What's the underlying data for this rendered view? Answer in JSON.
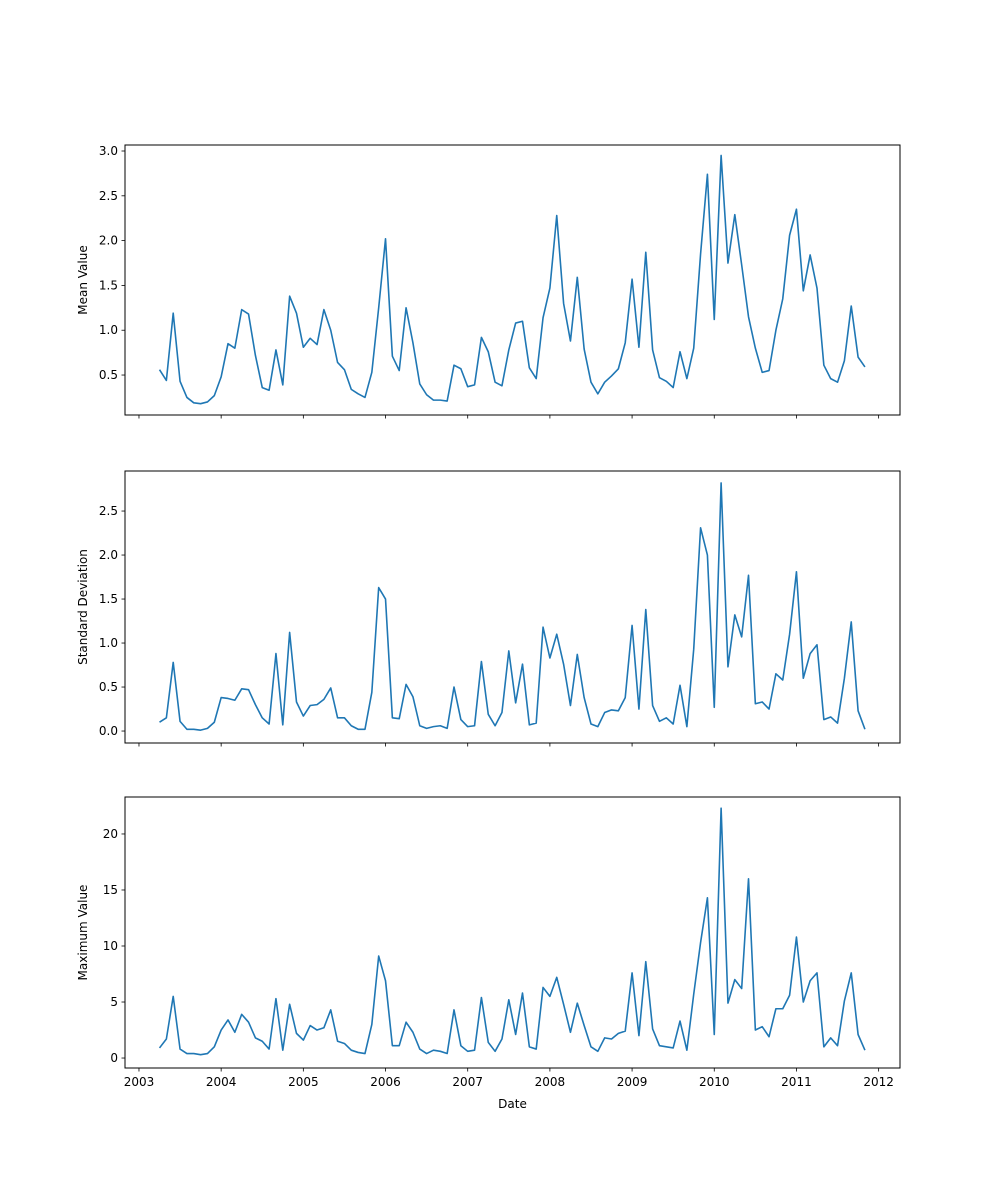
{
  "chart_data": [
    {
      "type": "line",
      "ylabel": "Mean Value",
      "xlabel": "",
      "x_start": "2003-04",
      "frequency": "monthly",
      "ylim": [
        0.054,
        3.067
      ],
      "yticks": [
        "0.5",
        "1.0",
        "1.5",
        "2.0",
        "2.5",
        "3.0"
      ],
      "ytick_values": [
        0.5,
        1.0,
        1.5,
        2.0,
        2.5,
        3.0
      ],
      "color": "#1f77b4",
      "values": [
        0.56,
        0.44,
        1.19,
        0.43,
        0.25,
        0.19,
        0.18,
        0.2,
        0.27,
        0.48,
        0.85,
        0.8,
        1.23,
        1.18,
        0.72,
        0.36,
        0.33,
        0.78,
        0.39,
        1.38,
        1.19,
        0.81,
        0.91,
        0.84,
        1.23,
        1.0,
        0.64,
        0.56,
        0.34,
        0.29,
        0.25,
        0.53,
        1.25,
        2.02,
        0.71,
        0.55,
        1.25,
        0.86,
        0.4,
        0.28,
        0.22,
        0.22,
        0.21,
        0.61,
        0.57,
        0.37,
        0.39,
        0.92,
        0.76,
        0.42,
        0.38,
        0.78,
        1.08,
        1.1,
        0.58,
        0.46,
        1.14,
        1.47,
        2.28,
        1.3,
        0.88,
        1.59,
        0.79,
        0.42,
        0.29,
        0.42,
        0.49,
        0.57,
        0.86,
        1.57,
        0.81,
        1.87,
        0.78,
        0.47,
        0.43,
        0.36,
        0.76,
        0.46,
        0.8,
        1.85,
        2.74,
        1.12,
        2.95,
        1.75,
        2.29,
        1.73,
        1.15,
        0.8,
        0.53,
        0.55,
        1.0,
        1.35,
        2.06,
        2.35,
        1.44,
        1.84,
        1.47,
        0.61,
        0.46,
        0.42,
        0.66,
        1.27,
        0.7,
        0.59
      ]
    },
    {
      "type": "line",
      "ylabel": "Standard Deviation",
      "xlabel": "",
      "x_start": "2003-04",
      "frequency": "monthly",
      "ylim": [
        -0.136,
        2.955
      ],
      "yticks": [
        "0.0",
        "0.5",
        "1.0",
        "1.5",
        "2.0",
        "2.5"
      ],
      "ytick_values": [
        0.0,
        0.5,
        1.0,
        1.5,
        2.0,
        2.5
      ],
      "color": "#1f77b4",
      "values": [
        0.1,
        0.15,
        0.78,
        0.11,
        0.02,
        0.02,
        0.01,
        0.03,
        0.1,
        0.38,
        0.37,
        0.35,
        0.48,
        0.47,
        0.3,
        0.15,
        0.08,
        0.88,
        0.07,
        1.12,
        0.33,
        0.17,
        0.29,
        0.3,
        0.36,
        0.49,
        0.15,
        0.15,
        0.06,
        0.02,
        0.02,
        0.44,
        1.63,
        1.5,
        0.15,
        0.14,
        0.53,
        0.39,
        0.06,
        0.03,
        0.05,
        0.06,
        0.03,
        0.5,
        0.13,
        0.05,
        0.06,
        0.79,
        0.19,
        0.06,
        0.21,
        0.91,
        0.32,
        0.76,
        0.07,
        0.09,
        1.18,
        0.83,
        1.1,
        0.76,
        0.29,
        0.87,
        0.38,
        0.08,
        0.05,
        0.21,
        0.24,
        0.23,
        0.38,
        1.2,
        0.25,
        1.38,
        0.29,
        0.11,
        0.15,
        0.08,
        0.52,
        0.05,
        0.93,
        2.31,
        2.0,
        0.27,
        2.82,
        0.73,
        1.32,
        1.07,
        1.77,
        0.31,
        0.33,
        0.25,
        0.65,
        0.58,
        1.1,
        1.81,
        0.6,
        0.88,
        0.98,
        0.13,
        0.16,
        0.09,
        0.6,
        1.24,
        0.23,
        0.02
      ]
    },
    {
      "type": "line",
      "ylabel": "Maximum Value",
      "xlabel": "Date",
      "x_start": "2003-04",
      "frequency": "monthly",
      "ylim": [
        -0.89,
        23.3
      ],
      "yticks": [
        "0",
        "5",
        "10",
        "15",
        "20"
      ],
      "ytick_values": [
        0,
        5,
        10,
        15,
        20
      ],
      "color": "#1f77b4",
      "values": [
        0.9,
        1.7,
        5.5,
        0.8,
        0.4,
        0.4,
        0.3,
        0.4,
        1.0,
        2.5,
        3.4,
        2.3,
        3.9,
        3.2,
        1.8,
        1.5,
        0.8,
        5.3,
        0.7,
        4.8,
        2.2,
        1.6,
        2.9,
        2.5,
        2.7,
        4.3,
        1.5,
        1.3,
        0.7,
        0.5,
        0.4,
        3.0,
        9.1,
        6.9,
        1.1,
        1.1,
        3.2,
        2.3,
        0.8,
        0.4,
        0.7,
        0.6,
        0.4,
        4.3,
        1.1,
        0.6,
        0.7,
        5.4,
        1.4,
        0.6,
        1.7,
        5.2,
        2.1,
        5.8,
        1.0,
        0.8,
        6.3,
        5.5,
        7.2,
        4.8,
        2.3,
        4.9,
        2.9,
        1.0,
        0.6,
        1.8,
        1.7,
        2.2,
        2.4,
        7.6,
        2.0,
        8.6,
        2.6,
        1.1,
        1.0,
        0.9,
        3.3,
        0.7,
        5.7,
        10.3,
        14.3,
        2.1,
        22.3,
        4.9,
        7.0,
        6.2,
        16.0,
        2.5,
        2.8,
        1.9,
        4.4,
        4.4,
        5.6,
        10.8,
        5.0,
        6.9,
        7.6,
        1.0,
        1.8,
        1.1,
        5.1,
        7.6,
        2.1,
        0.7
      ]
    }
  ],
  "xaxis": {
    "xlim_years": [
      2002.83,
      2012.26
    ],
    "ticks": [
      "2003",
      "2004",
      "2005",
      "2006",
      "2007",
      "2008",
      "2009",
      "2010",
      "2011",
      "2012"
    ],
    "tick_values": [
      2003,
      2004,
      2005,
      2006,
      2007,
      2008,
      2009,
      2010,
      2011,
      2012
    ]
  }
}
